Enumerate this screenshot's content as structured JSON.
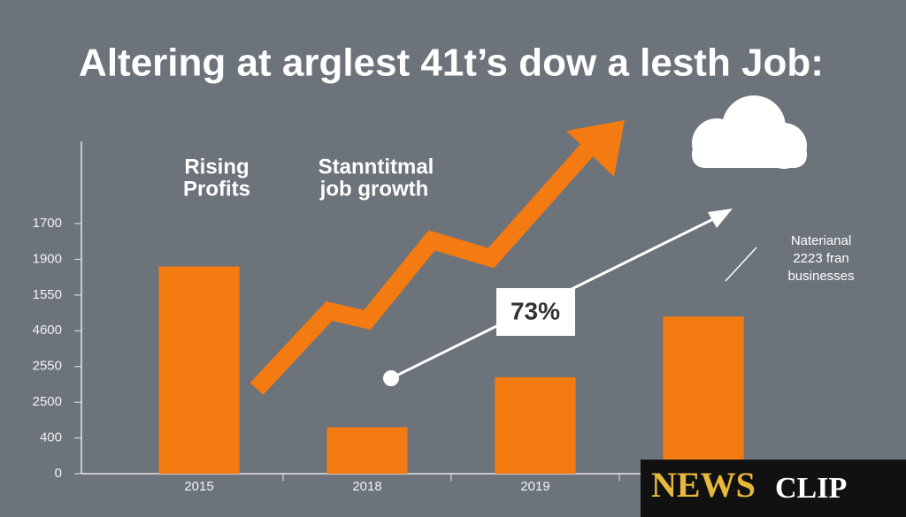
{
  "chart_data": {
    "type": "bar",
    "title": "Altering at arglest 41t’s dow a lesth Job:",
    "categories": [
      "2015",
      "2018",
      "2019",
      null
    ],
    "values": [
      5.8,
      1.3,
      2.7,
      4.4
    ],
    "color": "#f47a12",
    "ylim": [
      0,
      9.3
    ],
    "yticks": [
      0,
      {
        "value": 1,
        "label": "400"
      },
      {
        "value": 2,
        "label": "2500"
      },
      {
        "value": 3,
        "label": "2550"
      },
      {
        "value": 4,
        "label": "4600"
      },
      {
        "value": 5,
        "label": "1550"
      },
      {
        "value": 6,
        "label": "1900"
      },
      {
        "value": 7,
        "label": "1700"
      }
    ],
    "annotations": {
      "rising": [
        "Rising",
        "Profits"
      ],
      "growth": [
        "Stanntitmal",
        "job growth"
      ],
      "callout": "73%",
      "note": [
        "Naterianal",
        "2223 fran",
        "businesses"
      ]
    },
    "watermark": [
      "NEWS",
      "CLIP"
    ]
  }
}
